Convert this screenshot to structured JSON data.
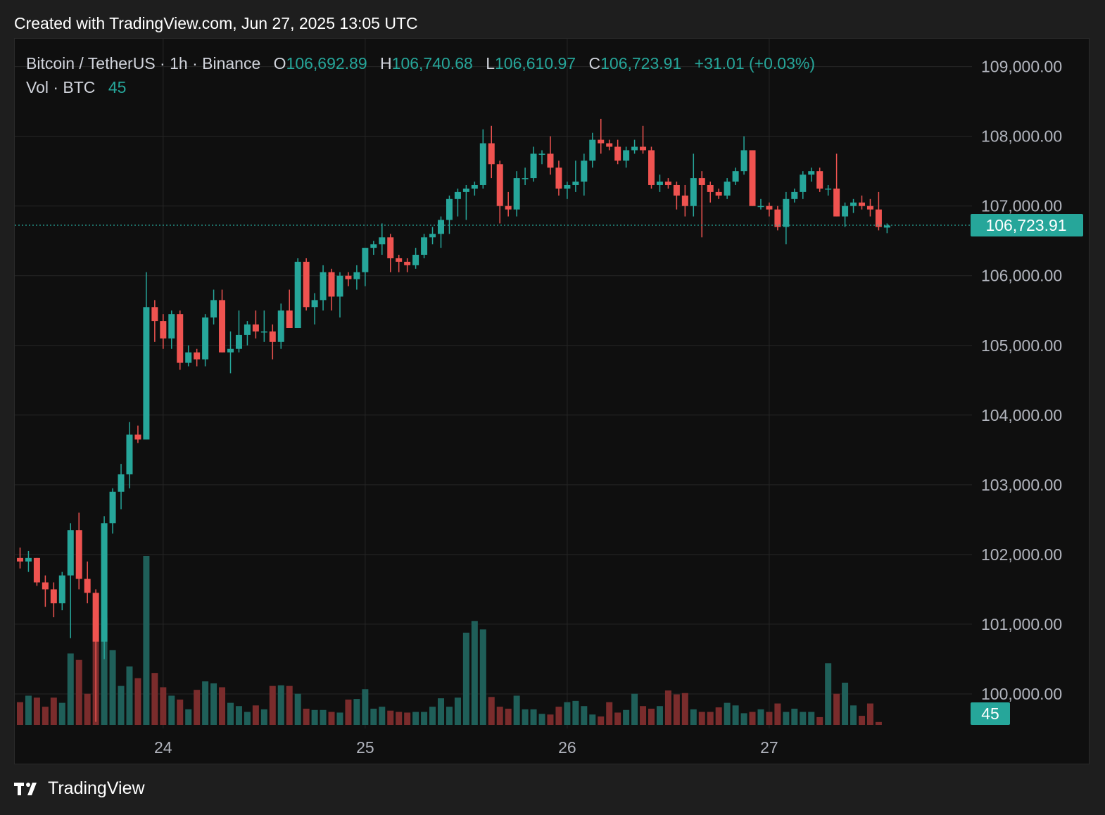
{
  "header": {
    "created_text": "Created with TradingView.com, Jun 27, 2025 13:05 UTC"
  },
  "legend": {
    "symbol": "Bitcoin / TetherUS · 1h · Binance",
    "open_label": "O",
    "open": "106,692.89",
    "high_label": "H",
    "high": "106,740.68",
    "low_label": "L",
    "low": "106,610.97",
    "close_label": "C",
    "close": "106,723.91",
    "change": "+31.01 (+0.03%)",
    "vol_label": "Vol · BTC",
    "vol_value": "45"
  },
  "footer": {
    "brand": "TradingView",
    "logo_icon": "tradingview-logo-icon"
  },
  "colors": {
    "background": "#0f0f0f",
    "up": "#26a69a",
    "down": "#ef5350",
    "volume_up": "#1f5f59",
    "volume_down": "#7a2c2c",
    "grid": "#262626",
    "axis_text": "#b2b5be"
  },
  "chart_data": {
    "type": "candlestick",
    "symbol": "Bitcoin / TetherUS",
    "interval": "1h",
    "exchange": "Binance",
    "ylim": [
      99000,
      109400
    ],
    "y_ticks": [
      100000,
      101000,
      102000,
      103000,
      104000,
      105000,
      106000,
      107000,
      108000,
      109000
    ],
    "y_tick_labels": [
      "100,000.00",
      "101,000.00",
      "102,000.00",
      "103,000.00",
      "104,000.00",
      "105,000.00",
      "106,000.00",
      "107,000.00",
      "108,000.00",
      "109,000.00"
    ],
    "x_tick_labels": [
      {
        "bar_index": 17,
        "label": "24"
      },
      {
        "bar_index": 41,
        "label": "25"
      },
      {
        "bar_index": 65,
        "label": "26"
      },
      {
        "bar_index": 89,
        "label": "27"
      }
    ],
    "last_price": 106723.91,
    "last_price_label": "106,723.91",
    "last_volume": 45,
    "last_volume_label": "45",
    "bars": [
      [
        101950,
        102100,
        101800,
        101900
      ],
      [
        101900,
        102050,
        101750,
        101950
      ],
      [
        101950,
        101950,
        101550,
        101600
      ],
      [
        101600,
        101700,
        101250,
        101500
      ],
      [
        101500,
        101600,
        101100,
        101300
      ],
      [
        101300,
        101750,
        101200,
        101700
      ],
      [
        101700,
        102450,
        100800,
        102350
      ],
      [
        102350,
        102600,
        101500,
        101650
      ],
      [
        101650,
        101900,
        101300,
        101450
      ],
      [
        101450,
        101500,
        99600,
        100750
      ],
      [
        100750,
        102550,
        100500,
        102450
      ],
      [
        102450,
        102950,
        102300,
        102900
      ],
      [
        102900,
        103300,
        102650,
        103150
      ],
      [
        103150,
        103900,
        102950,
        103720
      ],
      [
        103720,
        103850,
        103600,
        103650
      ],
      [
        103650,
        106050,
        103650,
        105550
      ],
      [
        105550,
        105650,
        105050,
        105350
      ],
      [
        105350,
        105450,
        104950,
        105100
      ],
      [
        105100,
        105500,
        104950,
        105450
      ],
      [
        105450,
        105500,
        104650,
        104750
      ],
      [
        104750,
        105000,
        104700,
        104900
      ],
      [
        104900,
        104950,
        104700,
        104800
      ],
      [
        104800,
        105450,
        104700,
        105400
      ],
      [
        105400,
        105800,
        105300,
        105650
      ],
      [
        105650,
        105800,
        104900,
        104900
      ],
      [
        104900,
        105200,
        104600,
        104950
      ],
      [
        104950,
        105500,
        104900,
        105150
      ],
      [
        105150,
        105350,
        105000,
        105300
      ],
      [
        105300,
        105500,
        105100,
        105200
      ],
      [
        105200,
        105500,
        105050,
        105200
      ],
      [
        105200,
        105300,
        104800,
        105050
      ],
      [
        105050,
        105600,
        104950,
        105500
      ],
      [
        105500,
        105800,
        105400,
        105250
      ],
      [
        105250,
        106250,
        105250,
        106200
      ],
      [
        106200,
        106250,
        105500,
        105550
      ],
      [
        105550,
        105750,
        105300,
        105650
      ],
      [
        105650,
        106150,
        105500,
        106050
      ],
      [
        106050,
        106100,
        105500,
        105700
      ],
      [
        105700,
        106050,
        105400,
        106000
      ],
      [
        106000,
        106050,
        105850,
        105950
      ],
      [
        105950,
        106150,
        105800,
        106050
      ],
      [
        106050,
        106400,
        105850,
        106400
      ],
      [
        106400,
        106500,
        106300,
        106450
      ],
      [
        106450,
        106750,
        106300,
        106550
      ],
      [
        106550,
        106600,
        106050,
        106250
      ],
      [
        106250,
        106300,
        106050,
        106200
      ],
      [
        106200,
        106250,
        106050,
        106150
      ],
      [
        106150,
        106400,
        106100,
        106300
      ],
      [
        106300,
        106600,
        106250,
        106550
      ],
      [
        106550,
        106700,
        106450,
        106600
      ],
      [
        106600,
        106850,
        106400,
        106800
      ],
      [
        106800,
        107150,
        106600,
        107100
      ],
      [
        107100,
        107250,
        106850,
        107200
      ],
      [
        107200,
        107300,
        106800,
        107250
      ],
      [
        107250,
        107350,
        107150,
        107300
      ],
      [
        107300,
        108100,
        107250,
        107900
      ],
      [
        107900,
        108150,
        107400,
        107600
      ],
      [
        107600,
        107650,
        106750,
        107000
      ],
      [
        107000,
        107200,
        106850,
        106950
      ],
      [
        106950,
        107500,
        106850,
        107400
      ],
      [
        107400,
        107550,
        107300,
        107400
      ],
      [
        107400,
        107850,
        107350,
        107750
      ],
      [
        107750,
        107800,
        107600,
        107750
      ],
      [
        107750,
        108000,
        107450,
        107550
      ],
      [
        107550,
        107650,
        107150,
        107250
      ],
      [
        107250,
        107350,
        107100,
        107300
      ],
      [
        107300,
        107650,
        107200,
        107350
      ],
      [
        107350,
        107750,
        107150,
        107650
      ],
      [
        107650,
        108050,
        107550,
        107950
      ],
      [
        107950,
        108250,
        107750,
        107900
      ],
      [
        107900,
        107950,
        107800,
        107850
      ],
      [
        107850,
        107950,
        107600,
        107650
      ],
      [
        107650,
        107850,
        107550,
        107800
      ],
      [
        107800,
        107950,
        107750,
        107850
      ],
      [
        107850,
        108150,
        107750,
        107800
      ],
      [
        107800,
        107850,
        107250,
        107300
      ],
      [
        107300,
        107450,
        107200,
        107350
      ],
      [
        107350,
        107400,
        107250,
        107300
      ],
      [
        107300,
        107350,
        106950,
        107150
      ],
      [
        107150,
        107300,
        106850,
        107000
      ],
      [
        107000,
        107750,
        106850,
        107400
      ],
      [
        107400,
        107500,
        106550,
        107300
      ],
      [
        107300,
        107350,
        107050,
        107200
      ],
      [
        107200,
        107250,
        107100,
        107150
      ],
      [
        107150,
        107400,
        107100,
        107350
      ],
      [
        107350,
        107550,
        107300,
        107500
      ],
      [
        107500,
        108000,
        107450,
        107800
      ],
      [
        107800,
        107800,
        107000,
        107000
      ],
      [
        107000,
        107100,
        106950,
        107000
      ],
      [
        107000,
        107050,
        106850,
        106950
      ],
      [
        106950,
        107000,
        106650,
        106700
      ],
      [
        106700,
        107200,
        106450,
        107100
      ],
      [
        107100,
        107250,
        107050,
        107200
      ],
      [
        107200,
        107500,
        107100,
        107450
      ],
      [
        107450,
        107550,
        107350,
        107500
      ],
      [
        107500,
        107550,
        107200,
        107250
      ],
      [
        107250,
        107300,
        107150,
        107250
      ],
      [
        107250,
        107750,
        106850,
        106850
      ],
      [
        106850,
        107050,
        106700,
        107000
      ],
      [
        107000,
        107100,
        106900,
        107050
      ],
      [
        107050,
        107150,
        106950,
        107000
      ],
      [
        107000,
        107100,
        106850,
        106950
      ],
      [
        106950,
        107200,
        106650,
        106700
      ],
      [
        106690,
        106750,
        106610,
        106720
      ]
    ],
    "volumes": [
      350,
      450,
      420,
      280,
      420,
      340,
      1100,
      1000,
      480,
      1650,
      1650,
      1150,
      600,
      900,
      720,
      2600,
      800,
      580,
      450,
      390,
      240,
      540,
      670,
      640,
      580,
      340,
      290,
      200,
      300,
      240,
      600,
      610,
      600,
      480,
      250,
      230,
      230,
      200,
      190,
      390,
      400,
      550,
      250,
      280,
      220,
      200,
      190,
      200,
      200,
      280,
      410,
      280,
      420,
      1420,
      1600,
      1470,
      430,
      280,
      250,
      450,
      240,
      240,
      170,
      160,
      280,
      350,
      370,
      290,
      160,
      130,
      350,
      190,
      230,
      480,
      290,
      250,
      290,
      530,
      470,
      490,
      240,
      200,
      200,
      270,
      340,
      300,
      180,
      200,
      240,
      200,
      330,
      200,
      250,
      200,
      200,
      120,
      950,
      480,
      650,
      300,
      140,
      330,
      45
    ]
  }
}
